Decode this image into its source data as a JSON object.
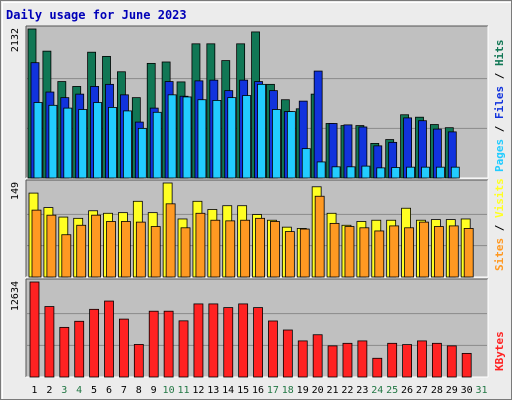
{
  "title": "Daily usage for June 2023",
  "colors": {
    "hits": "#117755",
    "files": "#1133dd",
    "pages": "#22ccff",
    "visits": "#ffff22",
    "sites": "#ff9922",
    "kbytes": "#ff2222",
    "panel_bg": "#c0c0c0",
    "grid": "#8a8a8a",
    "label_blue": "#0000b8",
    "weekend_green": "#227744"
  },
  "chart_data": [
    {
      "type": "bar",
      "panel": "hits-files-pages",
      "categories": [
        "1",
        "2",
        "3",
        "4",
        "5",
        "6",
        "7",
        "8",
        "9",
        "10",
        "11",
        "12",
        "13",
        "14",
        "15",
        "16",
        "17",
        "18",
        "19",
        "20",
        "21",
        "22",
        "23",
        "24",
        "25",
        "26",
        "27",
        "28",
        "29",
        "30",
        "31"
      ],
      "weekend_days": [
        "3",
        "4",
        "10",
        "11",
        "17",
        "18",
        "24",
        "25",
        "31"
      ],
      "ymax_label": "2132",
      "ymax": 2132,
      "axis_label_parts": [
        "Pages",
        "Files",
        "Hits"
      ],
      "series": [
        {
          "name": "Hits",
          "values": [
            2132,
            1815,
            1380,
            1310,
            1800,
            1740,
            1520,
            1150,
            1640,
            1660,
            1375,
            1920,
            1920,
            1680,
            1920,
            2090,
            1340,
            1120,
            990,
            1200,
            780,
            750,
            750,
            495,
            550,
            905,
            870,
            765,
            720,
            0,
            0
          ]
        },
        {
          "name": "Files",
          "values": [
            1650,
            1230,
            1150,
            1200,
            1310,
            1340,
            1190,
            800,
            1000,
            1380,
            1170,
            1390,
            1400,
            1250,
            1400,
            1380,
            1250,
            950,
            1100,
            1530,
            780,
            760,
            730,
            460,
            510,
            860,
            820,
            700,
            660,
            0,
            0
          ]
        },
        {
          "name": "Pages",
          "values": [
            1080,
            1040,
            1000,
            980,
            1080,
            1010,
            960,
            710,
            940,
            1190,
            1160,
            1120,
            1110,
            1150,
            1180,
            1340,
            980,
            950,
            420,
            230,
            160,
            160,
            170,
            145,
            150,
            155,
            155,
            155,
            155,
            0,
            0
          ]
        }
      ]
    },
    {
      "type": "bar",
      "panel": "visits-sites",
      "categories": [
        "1",
        "2",
        "3",
        "4",
        "5",
        "6",
        "7",
        "8",
        "9",
        "10",
        "11",
        "12",
        "13",
        "14",
        "15",
        "16",
        "17",
        "18",
        "19",
        "20",
        "21",
        "22",
        "23",
        "24",
        "25",
        "26",
        "27",
        "28",
        "29",
        "30",
        "31"
      ],
      "ymax_label": "149",
      "ymax": 149,
      "axis_label_parts": [
        "Sites",
        "Visits"
      ],
      "series": [
        {
          "name": "Visits",
          "values": [
            133,
            110,
            95,
            93,
            105,
            101,
            102,
            120,
            102,
            149,
            92,
            120,
            107,
            113,
            113,
            99,
            90,
            79,
            77,
            143,
            101,
            82,
            88,
            90,
            90,
            109,
            90,
            91,
            91,
            92,
            0
          ]
        },
        {
          "name": "Sites",
          "values": [
            106,
            98,
            67,
            82,
            98,
            88,
            88,
            87,
            80,
            116,
            78,
            101,
            90,
            89,
            90,
            93,
            88,
            72,
            76,
            128,
            85,
            80,
            78,
            73,
            81,
            78,
            87,
            80,
            81,
            77,
            0
          ]
        }
      ]
    },
    {
      "type": "bar",
      "panel": "kbytes",
      "categories": [
        "1",
        "2",
        "3",
        "4",
        "5",
        "6",
        "7",
        "8",
        "9",
        "10",
        "11",
        "12",
        "13",
        "14",
        "15",
        "16",
        "17",
        "18",
        "19",
        "20",
        "21",
        "22",
        "23",
        "24",
        "25",
        "26",
        "27",
        "28",
        "29",
        "30",
        "31"
      ],
      "ymax_label": "12634",
      "ymax": 12634,
      "axis_label_parts": [
        "KBytes"
      ],
      "series": [
        {
          "name": "KBytes",
          "values": [
            12634,
            9370,
            6600,
            7410,
            9000,
            10100,
            7700,
            4330,
            8750,
            8750,
            7470,
            9720,
            9720,
            9230,
            9720,
            9230,
            7450,
            6250,
            4800,
            5620,
            4140,
            4480,
            4800,
            2490,
            4480,
            4310,
            4800,
            4480,
            4140,
            3140,
            0
          ]
        }
      ]
    }
  ]
}
